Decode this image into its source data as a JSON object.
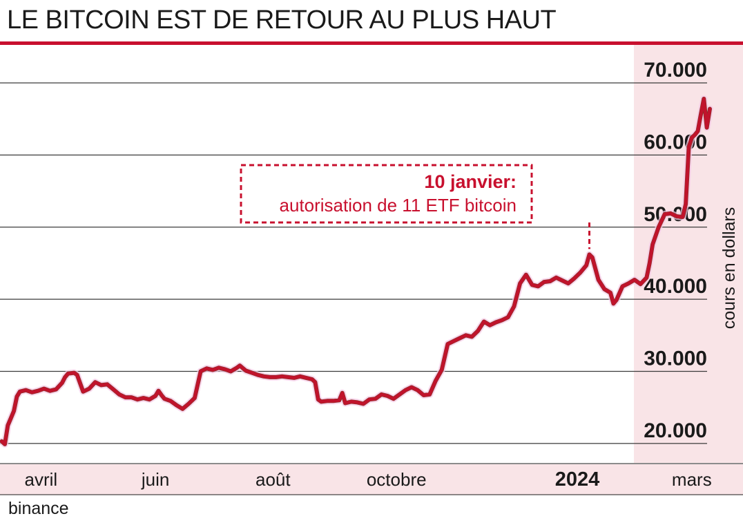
{
  "title": "LE BITCOIN EST DE RETOUR AU PLUS HAUT",
  "source": "binance",
  "colors": {
    "accent": "#c8102e",
    "shade": "#f9e4e7",
    "line_main": "#c8102e",
    "line_dark": "#7a3a26",
    "grid": "#3a3a3a"
  },
  "chart_data": {
    "type": "line",
    "title": "LE BITCOIN EST DE RETOUR AU PLUS HAUT",
    "xlabel": "",
    "ylabel": "cours en dollars",
    "ylim": [
      17500,
      70000
    ],
    "yticks": [
      20000,
      30000,
      40000,
      50000,
      60000,
      70000
    ],
    "ytick_labels": [
      "20.000",
      "30.000",
      "40.000",
      "50.000",
      "60.000",
      "70.000"
    ],
    "xtick_labels": [
      {
        "label": "avril",
        "x": 1.5,
        "bold": false
      },
      {
        "label": "juin",
        "x": 3.4,
        "bold": false
      },
      {
        "label": "août",
        "x": 5.35,
        "bold": false
      },
      {
        "label": "octobre",
        "x": 7.4,
        "bold": false
      },
      {
        "label": "2024",
        "x": 10.4,
        "bold": true
      },
      {
        "label": "mars",
        "x": 12.3,
        "bold": false
      }
    ],
    "xlim": [
      0.82,
      13.15
    ],
    "grid": true,
    "legend": "none",
    "series": [
      {
        "values": [
          [
            0.85,
            20300
          ],
          [
            0.9,
            19900
          ],
          [
            0.95,
            22500
          ],
          [
            1.0,
            23500
          ],
          [
            1.05,
            24500
          ],
          [
            1.1,
            26500
          ],
          [
            1.15,
            27200
          ],
          [
            1.25,
            27400
          ],
          [
            1.35,
            27100
          ],
          [
            1.45,
            27300
          ],
          [
            1.55,
            27600
          ],
          [
            1.65,
            27300
          ],
          [
            1.75,
            27500
          ],
          [
            1.85,
            28400
          ],
          [
            1.9,
            29200
          ],
          [
            1.95,
            29700
          ],
          [
            2.05,
            29800
          ],
          [
            2.1,
            29500
          ],
          [
            2.2,
            27200
          ],
          [
            2.3,
            27600
          ],
          [
            2.4,
            28500
          ],
          [
            2.5,
            28100
          ],
          [
            2.6,
            28200
          ],
          [
            2.7,
            27500
          ],
          [
            2.8,
            26800
          ],
          [
            2.9,
            26400
          ],
          [
            3.0,
            26400
          ],
          [
            3.1,
            26100
          ],
          [
            3.2,
            26300
          ],
          [
            3.3,
            26100
          ],
          [
            3.4,
            26600
          ],
          [
            3.45,
            27300
          ],
          [
            3.5,
            26700
          ],
          [
            3.55,
            26200
          ],
          [
            3.65,
            25900
          ],
          [
            3.75,
            25300
          ],
          [
            3.85,
            24800
          ],
          [
            3.95,
            25500
          ],
          [
            4.05,
            26300
          ],
          [
            4.15,
            30000
          ],
          [
            4.25,
            30400
          ],
          [
            4.35,
            30200
          ],
          [
            4.45,
            30500
          ],
          [
            4.55,
            30300
          ],
          [
            4.65,
            30000
          ],
          [
            4.75,
            30500
          ],
          [
            4.8,
            30800
          ],
          [
            4.9,
            30100
          ],
          [
            5.0,
            29800
          ],
          [
            5.1,
            29500
          ],
          [
            5.2,
            29300
          ],
          [
            5.3,
            29200
          ],
          [
            5.4,
            29200
          ],
          [
            5.5,
            29300
          ],
          [
            5.6,
            29200
          ],
          [
            5.7,
            29100
          ],
          [
            5.8,
            29300
          ],
          [
            5.9,
            29100
          ],
          [
            6.0,
            28900
          ],
          [
            6.05,
            28500
          ],
          [
            6.1,
            26100
          ],
          [
            6.15,
            25800
          ],
          [
            6.25,
            25900
          ],
          [
            6.35,
            25900
          ],
          [
            6.45,
            26000
          ],
          [
            6.5,
            27000
          ],
          [
            6.55,
            25600
          ],
          [
            6.65,
            25800
          ],
          [
            6.75,
            25700
          ],
          [
            6.85,
            25500
          ],
          [
            6.95,
            26100
          ],
          [
            7.05,
            26200
          ],
          [
            7.15,
            26800
          ],
          [
            7.25,
            26600
          ],
          [
            7.35,
            26200
          ],
          [
            7.45,
            26800
          ],
          [
            7.55,
            27400
          ],
          [
            7.65,
            27800
          ],
          [
            7.75,
            27400
          ],
          [
            7.85,
            26700
          ],
          [
            7.95,
            26800
          ],
          [
            8.05,
            28700
          ],
          [
            8.15,
            30200
          ],
          [
            8.25,
            33800
          ],
          [
            8.35,
            34200
          ],
          [
            8.45,
            34600
          ],
          [
            8.55,
            35000
          ],
          [
            8.65,
            34800
          ],
          [
            8.75,
            35600
          ],
          [
            8.85,
            36900
          ],
          [
            8.95,
            36400
          ],
          [
            9.05,
            36800
          ],
          [
            9.15,
            37100
          ],
          [
            9.25,
            37500
          ],
          [
            9.35,
            39000
          ],
          [
            9.45,
            42200
          ],
          [
            9.55,
            43400
          ],
          [
            9.65,
            42000
          ],
          [
            9.75,
            41800
          ],
          [
            9.85,
            42400
          ],
          [
            9.95,
            42500
          ],
          [
            10.05,
            43000
          ],
          [
            10.15,
            42600
          ],
          [
            10.25,
            42200
          ],
          [
            10.35,
            42900
          ],
          [
            10.45,
            43700
          ],
          [
            10.55,
            44700
          ],
          [
            10.6,
            46200
          ],
          [
            10.65,
            45800
          ],
          [
            10.75,
            42700
          ],
          [
            10.85,
            41400
          ],
          [
            10.95,
            40900
          ],
          [
            11.0,
            39400
          ],
          [
            11.05,
            39900
          ],
          [
            11.15,
            41800
          ],
          [
            11.25,
            42200
          ],
          [
            11.35,
            42700
          ],
          [
            11.45,
            42100
          ],
          [
            11.55,
            43000
          ],
          [
            11.6,
            45000
          ],
          [
            11.65,
            47600
          ],
          [
            11.75,
            50000
          ],
          [
            11.85,
            51800
          ],
          [
            11.95,
            51900
          ],
          [
            12.05,
            51500
          ],
          [
            12.15,
            51400
          ],
          [
            12.2,
            53200
          ],
          [
            12.25,
            61100
          ],
          [
            12.3,
            62400
          ],
          [
            12.35,
            62800
          ],
          [
            12.4,
            63300
          ],
          [
            12.45,
            65600
          ],
          [
            12.5,
            67800
          ],
          [
            12.55,
            63800
          ],
          [
            12.6,
            66400
          ]
        ]
      }
    ],
    "annotations": [
      {
        "title": "10 janvier:",
        "text": "autorisation de 11 ETF bitcoin",
        "x": 10.6,
        "y": 46200
      }
    ]
  }
}
